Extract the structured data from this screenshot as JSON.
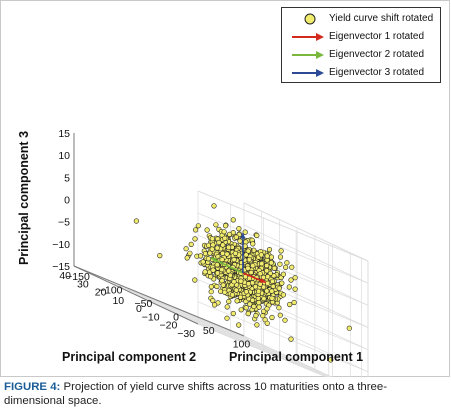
{
  "chart_data": {
    "type": "scatter",
    "axes": {
      "x": {
        "label": "Principal component 1",
        "ticks": [
          -150,
          -100,
          -50,
          0,
          50,
          100
        ],
        "range": [
          -150,
          110
        ]
      },
      "y": {
        "label": "Principal component 2",
        "ticks": [
          40,
          30,
          20,
          10,
          0,
          -10,
          -20,
          -30
        ],
        "range": [
          -30,
          40
        ]
      },
      "z": {
        "label": "Principal component 3",
        "ticks": [
          15,
          10,
          5,
          0,
          -5,
          -10,
          -15
        ],
        "range": [
          -15,
          15
        ]
      }
    },
    "grid": true,
    "legend_placement": "top-right",
    "legend": [
      {
        "label": "Yield curve shift rotated",
        "kind": "marker",
        "color": "#f2ec6e",
        "edge": "#222222"
      },
      {
        "label": "Eigenvector 1 rotated",
        "kind": "arrow",
        "color": "#d42a1e"
      },
      {
        "label": "Eigenvector 2 rotated",
        "kind": "arrow",
        "color": "#7ab83c"
      },
      {
        "label": "Eigenvector 3 rotated",
        "kind": "arrow",
        "color": "#2d4a96"
      }
    ],
    "series": [
      {
        "name": "Yield curve shift rotated",
        "point_count": 1200,
        "distribution": {
          "center": [
            0,
            0,
            0
          ],
          "spread": [
            22,
            6,
            3.5
          ]
        },
        "outliers": [
          [
            -60,
            38,
            1
          ],
          [
            -100,
            10,
            -4
          ],
          [
            95,
            -25,
            -2
          ],
          [
            60,
            -5,
            3
          ],
          [
            80,
            -20,
            -11
          ],
          [
            10,
            20,
            12
          ]
        ]
      }
    ],
    "eigenvectors": [
      {
        "name": "Eigenvector 1 rotated",
        "from": [
          0,
          0,
          0
        ],
        "to": [
          35,
          0,
          0
        ],
        "color": "#d42a1e"
      },
      {
        "name": "Eigenvector 2 rotated",
        "from": [
          0,
          0,
          0
        ],
        "to": [
          0,
          18,
          0
        ],
        "color": "#7ab83c"
      },
      {
        "name": "Eigenvector 3 rotated",
        "from": [
          0,
          0,
          0
        ],
        "to": [
          0,
          0,
          9
        ],
        "color": "#2d4a96"
      }
    ]
  },
  "axis_titles": {
    "x": "Principal component 1",
    "y": "Principal component 2",
    "z": "Principal component 3"
  },
  "caption": {
    "label": "FIGURE 4:",
    "text": " Projection of yield curve shifts across 10 maturities onto a three-dimensional space."
  }
}
